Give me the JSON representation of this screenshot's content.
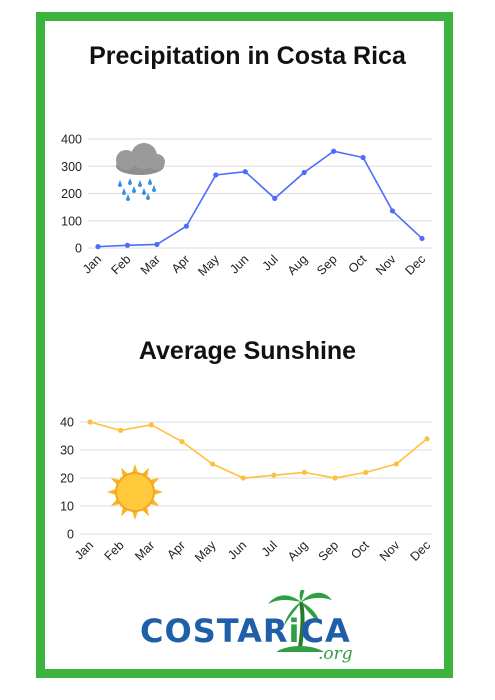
{
  "colors": {
    "frame": "#3cb33c",
    "precip_line": "#4f6bff",
    "sun_line": "#ffc13b",
    "logo_blue": "#1f5ea8",
    "logo_green": "#2ea043"
  },
  "icons": [
    "rain-cloud-icon",
    "sun-icon",
    "palm-tree-icon"
  ],
  "chart_data": [
    {
      "type": "line",
      "title": "Precipitation in Costa Rica",
      "categories": [
        "Jan",
        "Feb",
        "Mar",
        "Apr",
        "May",
        "Jun",
        "Jul",
        "Aug",
        "Sep",
        "Oct",
        "Nov",
        "Dec"
      ],
      "values": [
        5,
        10,
        13,
        80,
        268,
        280,
        182,
        277,
        355,
        332,
        136,
        35
      ],
      "yticks": [
        0,
        100,
        200,
        300,
        400
      ],
      "ylim": [
        0,
        400
      ],
      "grid": true,
      "line_color": "#4f6bff"
    },
    {
      "type": "line",
      "title": "Average Sunshine",
      "categories": [
        "Jan",
        "Feb",
        "Mar",
        "Apr",
        "May",
        "Jun",
        "Jul",
        "Aug",
        "Sep",
        "Oct",
        "Nov",
        "Dec"
      ],
      "values": [
        40,
        37,
        39,
        33,
        25,
        20,
        21,
        22,
        20,
        22,
        25,
        34
      ],
      "yticks": [
        0,
        10,
        20,
        30,
        40
      ],
      "ylim": [
        0,
        40
      ],
      "grid": true,
      "line_color": "#ffc13b"
    }
  ],
  "logo": {
    "main_blue_1": "COSTA",
    "main_blue_2": "R",
    "main_green_i": "i",
    "main_blue_3": "CA",
    "suffix": ".org"
  }
}
